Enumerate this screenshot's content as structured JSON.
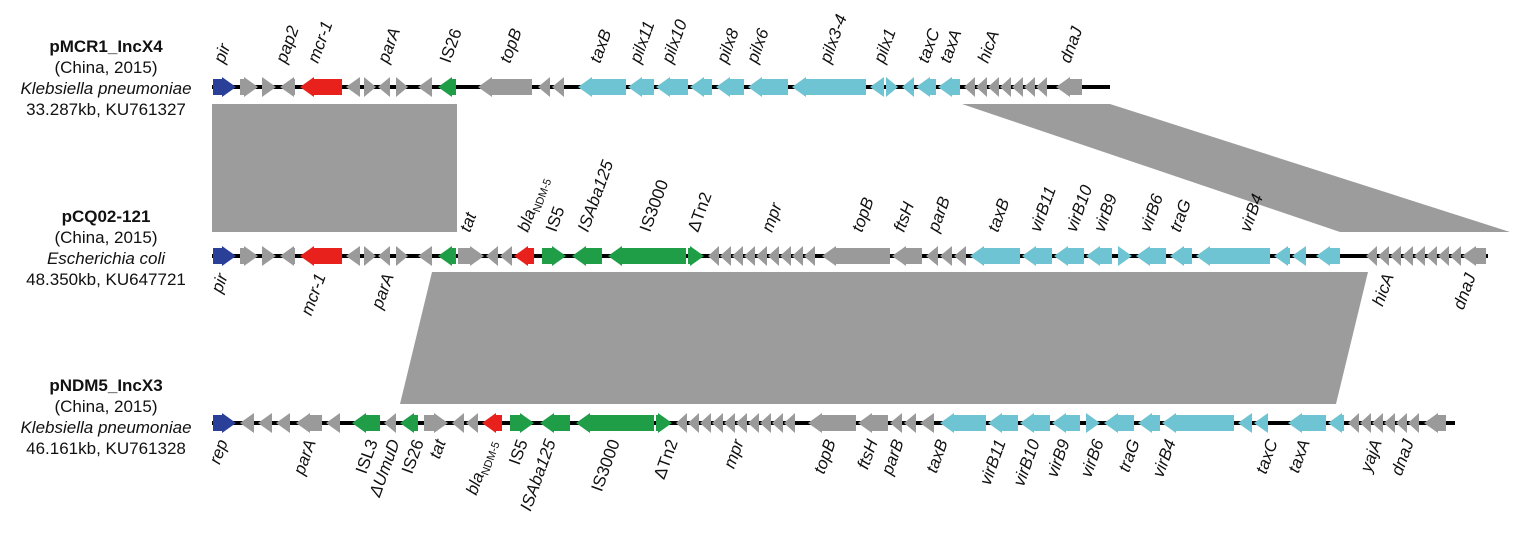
{
  "colors": {
    "rep": "#2a3f98",
    "mcr": "#e8211c",
    "mobile": "#1f9e47",
    "transfer": "#6ec4d2",
    "backbone": "#9a9a9a",
    "bla": "#e8211c",
    "homology": "#9c9c9c"
  },
  "plasmids": [
    {
      "name": "pMCR1_IncX4",
      "origin": "(China, 2015)",
      "species": "Klebsiella pneumoniae",
      "size_acc": "33.287kb, KU761327"
    },
    {
      "name": "pCQ02-121",
      "origin": "(China, 2015)",
      "species": "Escherichia coli",
      "size_acc": "48.350kb, KU647721"
    },
    {
      "name": "pNDM5_IncX3",
      "origin": "(China, 2015)",
      "species": "Klebsiella pneumoniae",
      "size_acc": "46.161kb, KU761328"
    }
  ],
  "gene_labels": {
    "row1_top": [
      "pir",
      "pap2",
      "mcr-1",
      "parA",
      "IS26",
      "topB",
      "taxB",
      "pilx11",
      "pilx10",
      "pilx8",
      "pilx6",
      "pilx3-4",
      "pilx1",
      "taxC",
      "taxA",
      "hicA",
      "dnaJ"
    ],
    "row2_top": [
      "tat",
      "bla",
      "NDM-5",
      "IS5",
      "ISAba125",
      "IS3000",
      "ΔTn2",
      "mpr",
      "topB",
      "ftsH",
      "parB",
      "taxB",
      "virB11",
      "virB10",
      "virB9",
      "virB6",
      "traG",
      "virB4"
    ],
    "row2_bottom": [
      "pir",
      "mcr-1",
      "parA",
      "hicA",
      "dnaJ"
    ],
    "row3_bottom": [
      "rep",
      "parA",
      "ISL3",
      "ΔUmuD",
      "IS26",
      "tat",
      "bla",
      "NDM-5",
      "IS5",
      "ISAba125",
      "IS3000",
      "ΔTn2",
      "mpr",
      "topB",
      "ftsH",
      "parB",
      "taxB",
      "virB11",
      "virB10",
      "virB9",
      "virB6",
      "traG",
      "virB4",
      "taxC",
      "taxA",
      "yajA",
      "dnaJ"
    ]
  }
}
